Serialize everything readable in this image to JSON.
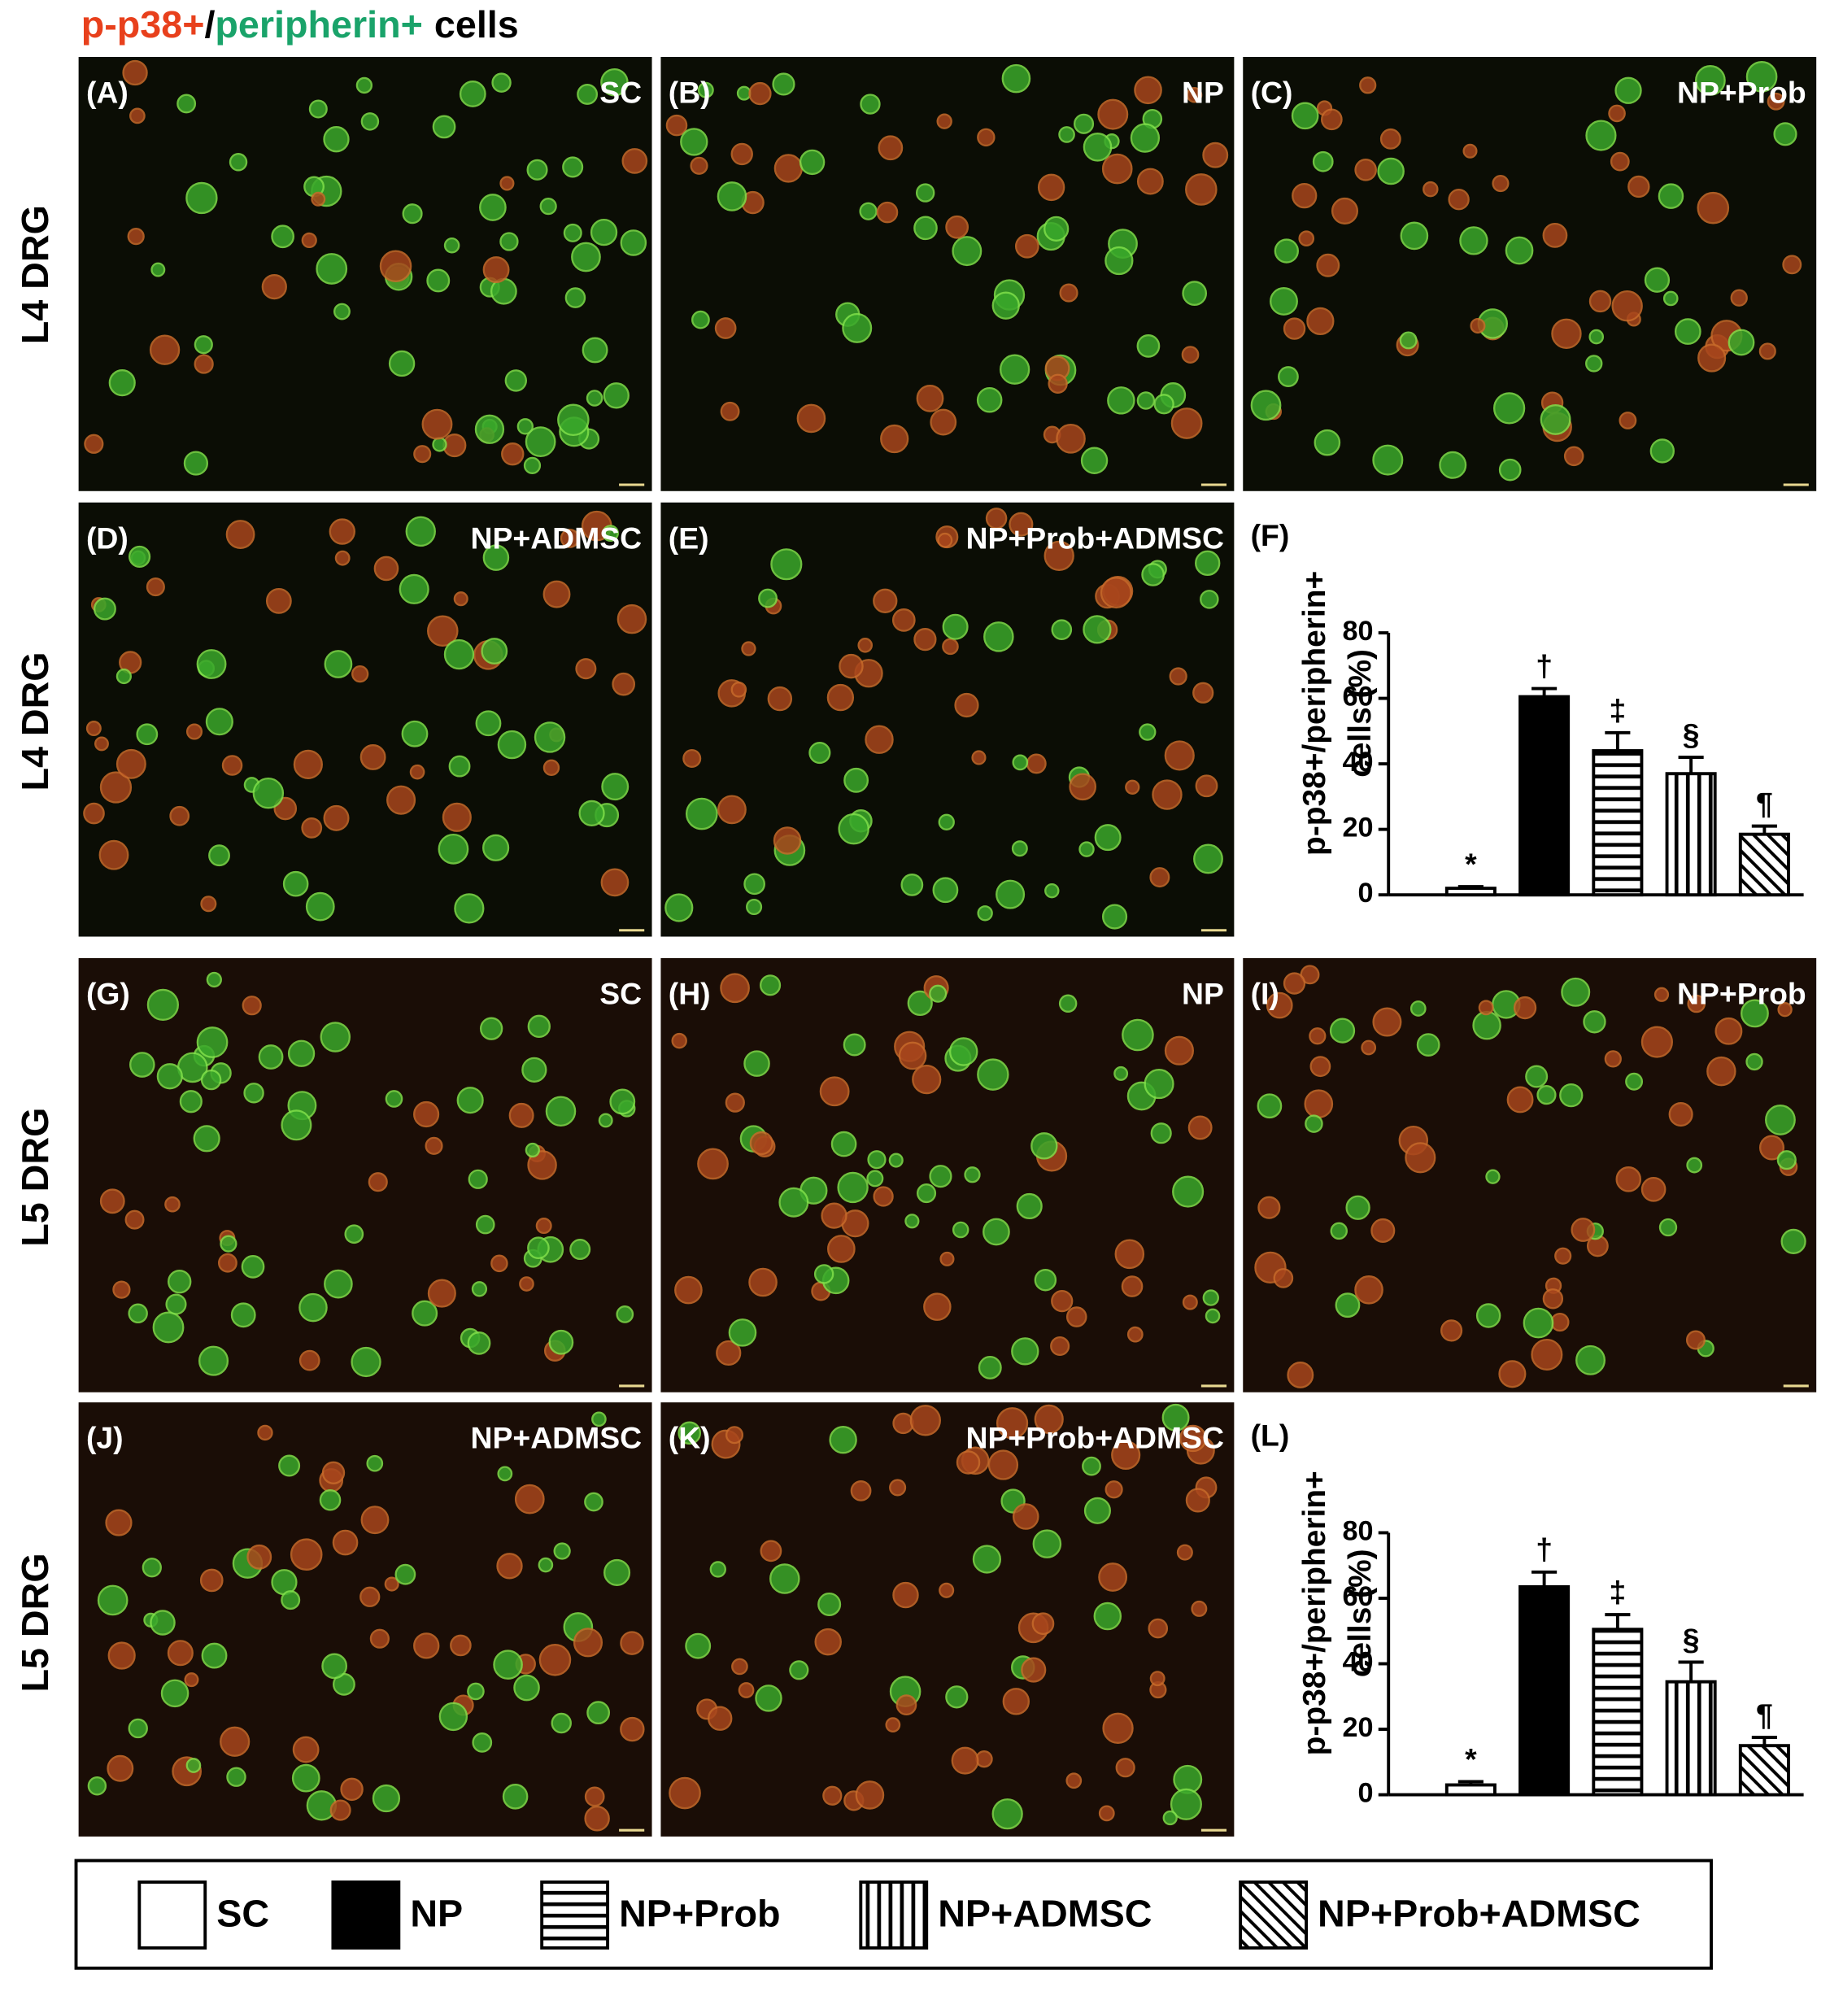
{
  "figure_title": [
    {
      "text": "p-p38+",
      "color": "#e8401c"
    },
    {
      "text": "/",
      "color": "#000000"
    },
    {
      "text": "peripherin+",
      "color": "#1aa36a"
    },
    {
      "text": "cells",
      "color": "#000000"
    }
  ],
  "row_labels": [
    "L4 DRG",
    "L4 DRG",
    "L5 DRG",
    "L5 DRG"
  ],
  "panels": [
    {
      "label": "(A)",
      "group": "SC"
    },
    {
      "label": "(B)",
      "group": "NP"
    },
    {
      "label": "(C)",
      "group": "NP+Prob"
    },
    {
      "label": "(D)",
      "group": "NP+ADMSC"
    },
    {
      "label": "(E)",
      "group": "NP+Prob+ADMSC"
    },
    {
      "label": "(G)",
      "group": "SC"
    },
    {
      "label": "(H)",
      "group": "NP"
    },
    {
      "label": "(I)",
      "group": "NP+Prob"
    },
    {
      "label": "(J)",
      "group": "NP+ADMSC"
    },
    {
      "label": "(K)",
      "group": "NP+Prob+ADMSC"
    }
  ],
  "legend": [
    {
      "name": "SC",
      "pattern": "white"
    },
    {
      "name": "NP",
      "pattern": "black"
    },
    {
      "name": "NP+Prob",
      "pattern": "horizontal"
    },
    {
      "name": "NP+ADMSC",
      "pattern": "vertical"
    },
    {
      "name": "NP+Prob+ADMSC",
      "pattern": "diagonal"
    }
  ],
  "chart_data": [
    {
      "type": "bar",
      "panel_label": "(F)",
      "ylabel": [
        "p-p38+/peripherin+",
        "cells (%)"
      ],
      "values": [
        2,
        60.5,
        44,
        37,
        18.5
      ],
      "errors": [
        0.5,
        2.5,
        5.5,
        5,
        2.5
      ],
      "annotations": [
        "*",
        "†",
        "‡",
        "§",
        "¶"
      ],
      "ylim": [
        0,
        80
      ],
      "yticks": [
        0,
        20,
        40,
        60,
        80
      ]
    },
    {
      "type": "bar",
      "panel_label": "(L)",
      "ylabel": [
        "p-p38+/peripherin+",
        "cells (%)"
      ],
      "values": [
        3,
        63.5,
        50.5,
        34.5,
        15
      ],
      "errors": [
        1,
        4.5,
        4.5,
        6,
        2.5
      ],
      "annotations": [
        "*",
        "†",
        "‡",
        "§",
        "¶"
      ],
      "ylim": [
        0,
        80
      ],
      "yticks": [
        0,
        20,
        40,
        60,
        80
      ]
    }
  ]
}
